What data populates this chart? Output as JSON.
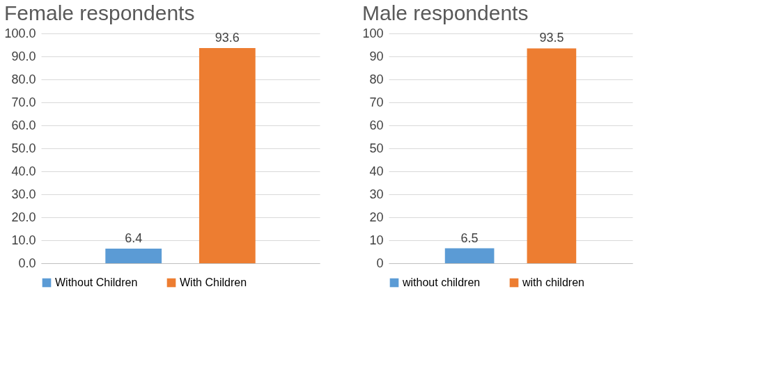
{
  "chart_data": [
    {
      "type": "bar",
      "title": "Female respondents",
      "categories": [
        null
      ],
      "series": [
        {
          "name": "Without Children",
          "color": "#5b9bd5",
          "values": [
            6.4
          ]
        },
        {
          "name": "With Children",
          "color": "#ed7d31",
          "values": [
            93.6
          ]
        }
      ],
      "ylim": [
        0,
        100
      ],
      "yticks": [
        {
          "value": 0,
          "label": "0.0"
        },
        {
          "value": 10,
          "label": "10.0"
        },
        {
          "value": 20,
          "label": "20.0"
        },
        {
          "value": 30,
          "label": "30.0"
        },
        {
          "value": 40,
          "label": "40.0"
        },
        {
          "value": 50,
          "label": "50.0"
        },
        {
          "value": 60,
          "label": "60.0"
        },
        {
          "value": 70,
          "label": "70.0"
        },
        {
          "value": 80,
          "label": "80.0"
        },
        {
          "value": 90,
          "label": "90.0"
        },
        {
          "value": 100,
          "label": "100.0"
        }
      ],
      "grid": "y",
      "legend": "bottom",
      "data_labels": true
    },
    {
      "type": "bar",
      "title": "Male respondents",
      "categories": [
        null
      ],
      "series": [
        {
          "name": "without children",
          "color": "#5b9bd5",
          "values": [
            6.5
          ]
        },
        {
          "name": "with children",
          "color": "#ed7d31",
          "values": [
            93.5
          ]
        }
      ],
      "ylim": [
        0,
        100
      ],
      "yticks": [
        0,
        10,
        20,
        30,
        40,
        50,
        60,
        70,
        80,
        90,
        100
      ],
      "grid": "y",
      "legend": "bottom",
      "data_labels": true
    }
  ]
}
